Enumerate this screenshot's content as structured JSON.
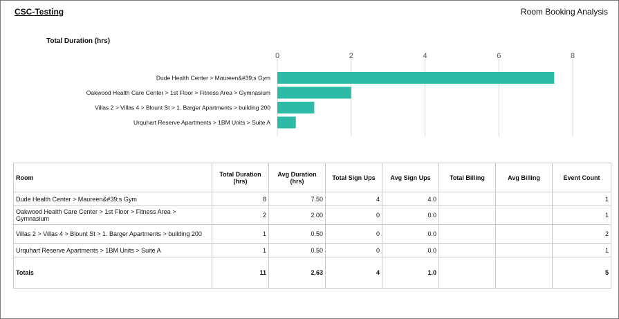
{
  "header": {
    "org_title": "CSC-Testing",
    "report_title": "Room Booking Analysis"
  },
  "colors": {
    "bar": "#2dbba7",
    "grid": "#d9d9d9"
  },
  "chart_data": {
    "type": "bar",
    "orientation": "horizontal",
    "title": "Total Duration (hrs)",
    "categories": [
      "Dude Health Center > Maureen&#39;s Gym",
      "Oakwood Health Care Center > 1st Floor > Fitness Area > Gymnasium",
      "Villas 2 > Villas 4 > Blount St > 1. Barger Apartments > building 200",
      "Urquhart Reserve Apartments > 1BM Units > Suite A"
    ],
    "values": [
      7.5,
      2,
      1,
      0.5
    ],
    "xlim": [
      0,
      8
    ],
    "xticks": [
      "0",
      "2",
      "4",
      "6",
      "8"
    ],
    "xaxis_position": "top",
    "grid": true
  },
  "table": {
    "columns": [
      "Room",
      "Total Duration (hrs)",
      "Avg Duration (hrs)",
      "Total Sign Ups",
      "Avg Sign Ups",
      "Total Billing",
      "Avg Billing",
      "Event Count"
    ],
    "rows": [
      [
        "Dude Health Center > Maureen&#39;s Gym",
        "8",
        "7.50",
        "4",
        "4.0",
        "",
        "",
        "1"
      ],
      [
        "Oakwood Health Care Center > 1st Floor > Fitness Area > Gymnasium",
        "2",
        "2.00",
        "0",
        "0.0",
        "",
        "",
        "1"
      ],
      [
        "Villas 2 > Villas 4 > Blount St > 1. Barger Apartments > building 200",
        "1",
        "0.50",
        "0",
        "0.0",
        "",
        "",
        "2"
      ],
      [
        "Urquhart Reserve Apartments > 1BM Units > Suite A",
        "1",
        "0.50",
        "0",
        "0.0",
        "",
        "",
        "1"
      ]
    ],
    "totals": [
      "Totals",
      "11",
      "2.63",
      "4",
      "1.0",
      "",
      "",
      "5"
    ]
  }
}
